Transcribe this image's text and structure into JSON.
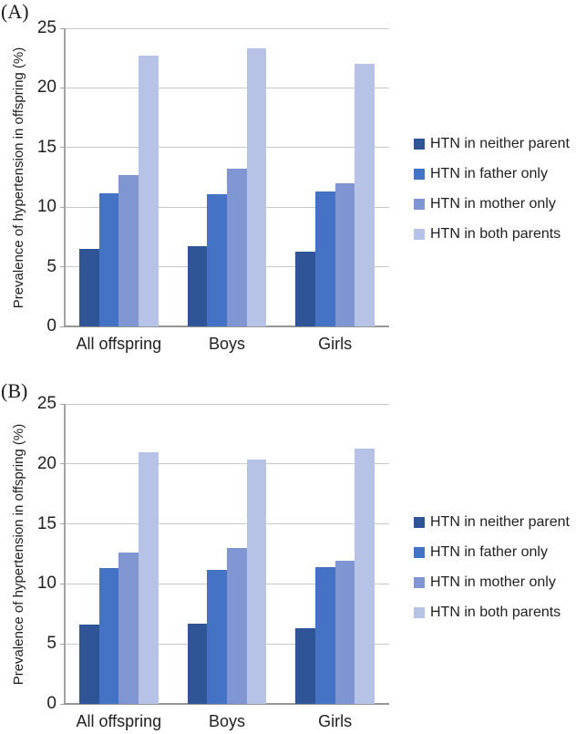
{
  "style": {
    "background": "#ffffff",
    "axis_color": "#a3a3a3",
    "grid_color": "#c9c9c9",
    "text_color": "#1f1f1f",
    "series_colors": [
      "#2F5597",
      "#4472C4",
      "#8096D2",
      "#B7C3E6"
    ]
  },
  "chart_data": [
    {
      "type": "bar",
      "panel_label": "(A)",
      "ylabel": "Prevalence of hypertension in offspring (%)",
      "xlabel": "",
      "categories": [
        "All offspring",
        "Boys",
        "Girls"
      ],
      "series": [
        {
          "name": "HTN in neither parent",
          "color": "#2F5597",
          "values": [
            6.5,
            6.7,
            6.3
          ]
        },
        {
          "name": "HTN in father only",
          "color": "#4472C4",
          "values": [
            11.2,
            11.1,
            11.3
          ]
        },
        {
          "name": "HTN in mother only",
          "color": "#8096D2",
          "values": [
            12.7,
            13.2,
            12.0
          ]
        },
        {
          "name": "HTN in both parents",
          "color": "#B7C3E6",
          "values": [
            22.7,
            23.3,
            22.0
          ]
        }
      ],
      "ylim": [
        0,
        25
      ],
      "yticks": [
        0,
        5,
        10,
        15,
        20,
        25
      ],
      "grid": true,
      "legend_position": "right"
    },
    {
      "type": "bar",
      "panel_label": "(B)",
      "ylabel": "Prevalence of hypertension in offspring (%)",
      "xlabel": "",
      "categories": [
        "All offspring",
        "Boys",
        "Girls"
      ],
      "series": [
        {
          "name": "HTN in neither parent",
          "color": "#2F5597",
          "values": [
            6.6,
            6.7,
            6.3
          ]
        },
        {
          "name": "HTN in father only",
          "color": "#4472C4",
          "values": [
            11.3,
            11.2,
            11.4
          ]
        },
        {
          "name": "HTN in mother only",
          "color": "#8096D2",
          "values": [
            12.6,
            13.0,
            11.9
          ]
        },
        {
          "name": "HTN in both parents",
          "color": "#B7C3E6",
          "values": [
            21.0,
            20.4,
            21.3
          ]
        }
      ],
      "ylim": [
        0,
        25
      ],
      "yticks": [
        0,
        5,
        10,
        15,
        20,
        25
      ],
      "grid": true,
      "legend_position": "right"
    }
  ]
}
